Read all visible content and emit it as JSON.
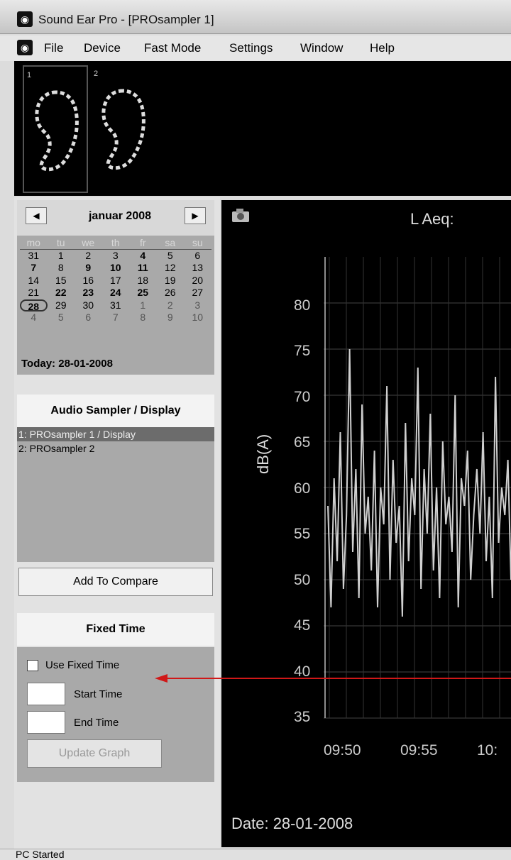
{
  "window": {
    "title": "Sound Ear Pro - [PROsampler 1]"
  },
  "menu": [
    "File",
    "Device",
    "Fast Mode",
    "Settings",
    "Window",
    "Help"
  ],
  "devices": [
    {
      "label": "1"
    },
    {
      "label": "2"
    }
  ],
  "calendar": {
    "month": "januar 2008",
    "weekdays": [
      "mo",
      "tu",
      "we",
      "th",
      "fr",
      "sa",
      "su"
    ],
    "weeks": [
      [
        "31",
        "1",
        "2",
        "3",
        "4",
        "5",
        "6"
      ],
      [
        "7",
        "8",
        "9",
        "10",
        "11",
        "12",
        "13"
      ],
      [
        "14",
        "15",
        "16",
        "17",
        "18",
        "19",
        "20"
      ],
      [
        "21",
        "22",
        "23",
        "24",
        "25",
        "26",
        "27"
      ],
      [
        "28",
        "29",
        "30",
        "31",
        "1",
        "2",
        "3"
      ],
      [
        "4",
        "5",
        "6",
        "7",
        "8",
        "9",
        "10"
      ]
    ],
    "today": "Today: 28-01-2008"
  },
  "sampler_panel": {
    "title": "Audio Sampler / Display",
    "items": [
      "1: PROsampler 1 / Display",
      "2: PROsampler 2"
    ],
    "selected_index": 0
  },
  "compare_button": "Add To Compare",
  "fixed_time": {
    "title": "Fixed Time",
    "use_label": "Use Fixed Time",
    "start_label": "Start Time",
    "end_label": "End Time",
    "start_value": "",
    "end_value": "",
    "update_button": "Update Graph"
  },
  "graph": {
    "laeq_label": "L Aeq:",
    "date": "Date: 28-01-2008"
  },
  "chart_data": {
    "type": "line",
    "ylabel": "dB(A)",
    "ylim": [
      35,
      85
    ],
    "yticks": [
      "35",
      "40",
      "45",
      "50",
      "55",
      "60",
      "65",
      "70",
      "75",
      "80"
    ],
    "xticks": [
      "09:50",
      "09:55",
      "10:"
    ],
    "series": [
      {
        "values": [
          58,
          47,
          61,
          52,
          66,
          49,
          57,
          75,
          53,
          62,
          48,
          69,
          55,
          59,
          51,
          64,
          47,
          60,
          56,
          71,
          50,
          63,
          54,
          58,
          46,
          67,
          52,
          61,
          57,
          73,
          49,
          62,
          55,
          68,
          51,
          60,
          48,
          65,
          56,
          59,
          53,
          70,
          47,
          61,
          58,
          64,
          50,
          57,
          62,
          55,
          66,
          52,
          59,
          48,
          72,
          54,
          60,
          57,
          63,
          50
        ]
      }
    ],
    "grid": true
  },
  "status": "PC Started"
}
